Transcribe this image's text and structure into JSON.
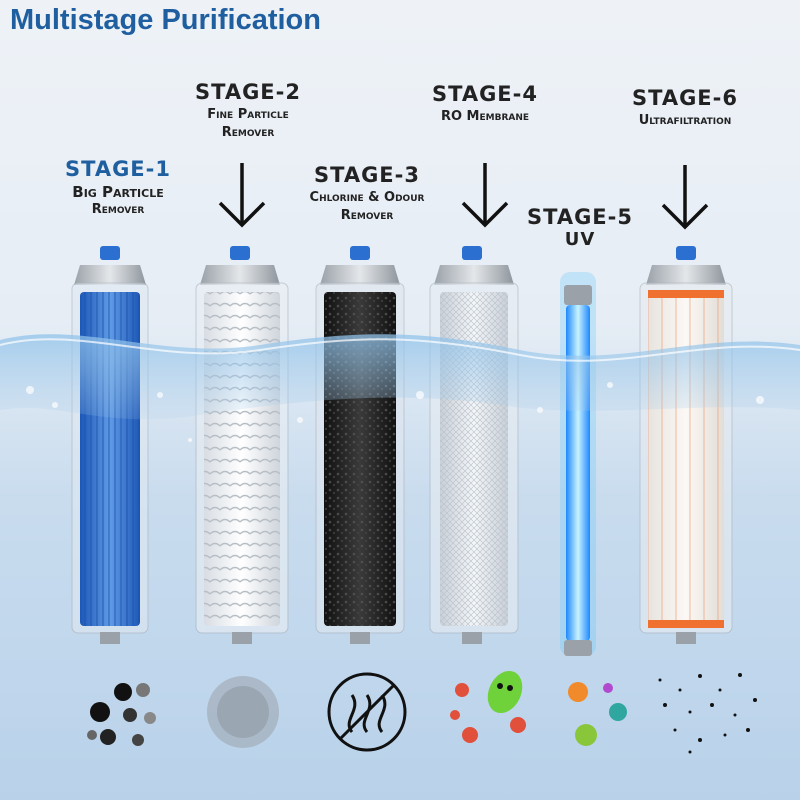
{
  "title": "Multistage Purification",
  "stages": [
    {
      "label": "STAGE-1",
      "line1": "Big Particle",
      "line2": "Remover"
    },
    {
      "label": "STAGE-2",
      "line1": "Fine Particle",
      "line2": "Remover"
    },
    {
      "label": "STAGE-3",
      "line1": "Chlorine & Odour",
      "line2": "Remover"
    },
    {
      "label": "STAGE-4",
      "line1": "RO Membrane",
      "line2": ""
    },
    {
      "label": "STAGE-5",
      "line1": "UV",
      "line2": ""
    },
    {
      "label": "STAGE-6",
      "line1": "Ultrafiltration",
      "line2": ""
    }
  ],
  "colors": {
    "title": "#1f5fa0",
    "stage1_filter": "#3f7fd0",
    "uv": "#4fc3ff",
    "uf_band": "#f07030"
  }
}
